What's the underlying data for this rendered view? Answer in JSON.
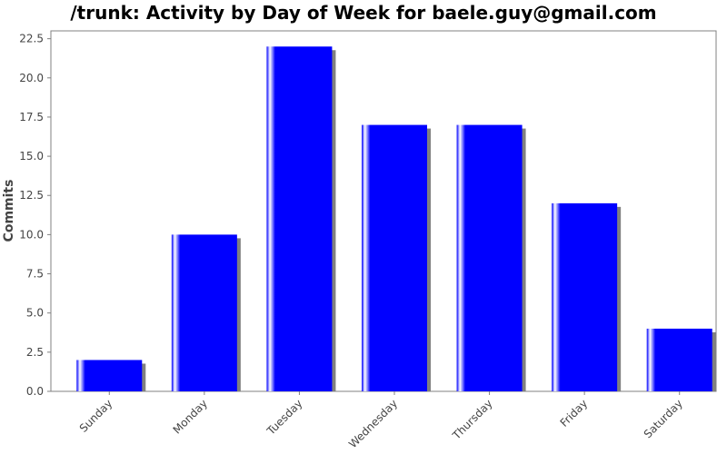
{
  "chart_data": {
    "type": "bar",
    "title": "/trunk: Activity by Day of Week for baele.guy@gmail.com",
    "xlabel": "",
    "ylabel": "Commits",
    "categories": [
      "Sunday",
      "Monday",
      "Tuesday",
      "Wednesday",
      "Thursday",
      "Friday",
      "Saturday"
    ],
    "values": [
      2,
      10,
      22,
      17,
      17,
      12,
      4
    ],
    "ylim": [
      0,
      23
    ],
    "yticks": [
      "0.0",
      "2.5",
      "5.0",
      "7.5",
      "10.0",
      "12.5",
      "15.0",
      "17.5",
      "20.0",
      "22.5"
    ],
    "grid": false,
    "legend": "none",
    "colors": {
      "bar": "#0000ff",
      "bar_highlight": "#ffffff",
      "shadow": "#808080",
      "axis": "#808080",
      "tick_label": "#444444",
      "ylabel": "#444444"
    }
  }
}
